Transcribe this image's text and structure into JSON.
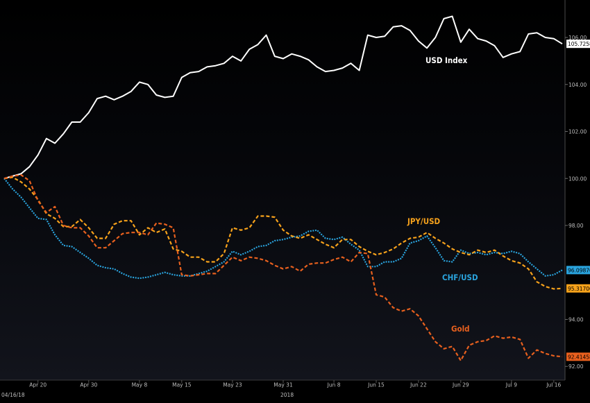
{
  "chart_data": {
    "type": "line",
    "x": [
      "Apr 16",
      "Apr 17",
      "Apr 18",
      "Apr 19",
      "Apr 20",
      "Apr 23",
      "Apr 24",
      "Apr 25",
      "Apr 26",
      "Apr 27",
      "Apr 30",
      "May 1",
      "May 2",
      "May 3",
      "May 4",
      "May 7",
      "May 8",
      "May 9",
      "May 10",
      "May 11",
      "May 14",
      "May 15",
      "May 16",
      "May 17",
      "May 18",
      "May 21",
      "May 22",
      "May 23",
      "May 24",
      "May 25",
      "May 28",
      "May 29",
      "May 30",
      "May 31",
      "Jun 1",
      "Jun 4",
      "Jun 5",
      "Jun 6",
      "Jun 7",
      "Jun 8",
      "Jun 11",
      "Jun 12",
      "Jun 13",
      "Jun 14",
      "Jun 15",
      "Jun 18",
      "Jun 19",
      "Jun 20",
      "Jun 21",
      "Jun 22",
      "Jun 25",
      "Jun 26",
      "Jun 27",
      "Jun 28",
      "Jun 29",
      "Jul 2",
      "Jul 3",
      "Jul 4",
      "Jul 5",
      "Jul 6",
      "Jul 9",
      "Jul 10",
      "Jul 11",
      "Jul 12",
      "Jul 13",
      "Jul 16",
      "Jul 17"
    ],
    "xtick_labels": [
      "Apr 20",
      "Apr 30",
      "May 8",
      "May 15",
      "May 23",
      "May 31",
      "Jun 8",
      "Jun 15",
      "Jun 22",
      "Jun 29",
      "Jul 9",
      "Jul 16"
    ],
    "first_date_label": "04/16/18",
    "year_label": "2018",
    "yticks": [
      "92.00",
      "94.00",
      "98.00",
      "100.00",
      "102.00",
      "104.00",
      "106.00"
    ],
    "ylim": [
      91.8,
      107.3
    ],
    "grid": false,
    "legend": "inline labels",
    "series": [
      {
        "name": "USD Index",
        "color": "#ffffff",
        "dash": "solid",
        "last_value": "105.725891",
        "values": [
          100.0,
          100.1,
          100.2,
          100.5,
          101.0,
          101.7,
          101.5,
          101.9,
          102.4,
          102.4,
          102.8,
          103.4,
          103.5,
          103.35,
          103.5,
          103.7,
          104.1,
          104.0,
          103.55,
          103.45,
          103.5,
          104.3,
          104.5,
          104.55,
          104.75,
          104.8,
          104.9,
          105.2,
          105.0,
          105.5,
          105.7,
          106.1,
          105.2,
          105.1,
          105.3,
          105.2,
          105.05,
          104.75,
          104.55,
          104.6,
          104.7,
          104.9,
          104.6,
          106.1,
          106.0,
          106.05,
          106.45,
          106.5,
          106.3,
          105.85,
          105.55,
          106.0,
          106.8,
          106.9,
          105.8,
          106.35,
          105.95,
          105.85,
          105.65,
          105.15,
          105.3,
          105.4,
          106.15,
          106.2,
          106.0,
          105.95,
          105.73
        ]
      },
      {
        "name": "JPY/USD",
        "color": "#f7a21b",
        "dash": "dashed",
        "last_value": "95.317009",
        "values": [
          100.0,
          100.05,
          99.85,
          99.55,
          99.1,
          98.5,
          98.3,
          97.95,
          97.95,
          98.25,
          97.9,
          97.45,
          97.45,
          98.05,
          98.2,
          98.2,
          97.6,
          97.9,
          97.7,
          97.85,
          97.0,
          96.9,
          96.65,
          96.65,
          96.45,
          96.45,
          96.8,
          97.9,
          97.8,
          97.9,
          98.4,
          98.4,
          98.35,
          97.8,
          97.55,
          97.45,
          97.6,
          97.4,
          97.2,
          97.05,
          97.4,
          97.4,
          97.1,
          96.9,
          96.75,
          96.85,
          97.0,
          97.25,
          97.45,
          97.5,
          97.7,
          97.45,
          97.25,
          97.0,
          96.85,
          96.75,
          96.95,
          96.85,
          96.95,
          96.7,
          96.5,
          96.4,
          96.15,
          95.6,
          95.4,
          95.3,
          95.32
        ]
      },
      {
        "name": "CHF/USD",
        "color": "#2aa4de",
        "dash": "dotted",
        "last_value": "96.098701",
        "values": [
          100.0,
          99.55,
          99.2,
          98.75,
          98.3,
          98.25,
          97.6,
          97.15,
          97.1,
          96.85,
          96.6,
          96.3,
          96.2,
          96.15,
          95.95,
          95.8,
          95.75,
          95.8,
          95.9,
          96.0,
          95.9,
          95.85,
          95.85,
          95.95,
          96.05,
          96.25,
          96.45,
          96.9,
          96.75,
          96.9,
          97.1,
          97.15,
          97.35,
          97.4,
          97.5,
          97.55,
          97.75,
          97.8,
          97.45,
          97.4,
          97.5,
          97.2,
          96.95,
          96.25,
          96.25,
          96.45,
          96.45,
          96.6,
          97.25,
          97.35,
          97.55,
          97.05,
          96.5,
          96.45,
          96.95,
          96.8,
          96.85,
          96.75,
          96.85,
          96.8,
          96.9,
          96.8,
          96.45,
          96.15,
          95.85,
          95.9,
          96.1
        ]
      },
      {
        "name": "Gold",
        "color": "#e8601e",
        "dash": "dashed",
        "last_value": "92.414589",
        "values": [
          100.0,
          100.1,
          100.15,
          99.9,
          99.05,
          98.55,
          98.8,
          98.0,
          97.9,
          97.9,
          97.55,
          97.05,
          97.05,
          97.35,
          97.65,
          97.7,
          97.7,
          97.6,
          98.1,
          98.05,
          97.9,
          95.9,
          95.85,
          95.9,
          95.95,
          95.95,
          96.3,
          96.65,
          96.5,
          96.65,
          96.6,
          96.5,
          96.3,
          96.15,
          96.25,
          96.05,
          96.35,
          96.4,
          96.4,
          96.55,
          96.65,
          96.45,
          96.85,
          96.8,
          95.05,
          94.95,
          94.5,
          94.35,
          94.45,
          94.15,
          93.6,
          93.05,
          92.75,
          92.85,
          92.25,
          92.9,
          93.05,
          93.1,
          93.3,
          93.2,
          93.25,
          93.15,
          92.35,
          92.7,
          92.55,
          92.45,
          92.41
        ]
      }
    ]
  }
}
